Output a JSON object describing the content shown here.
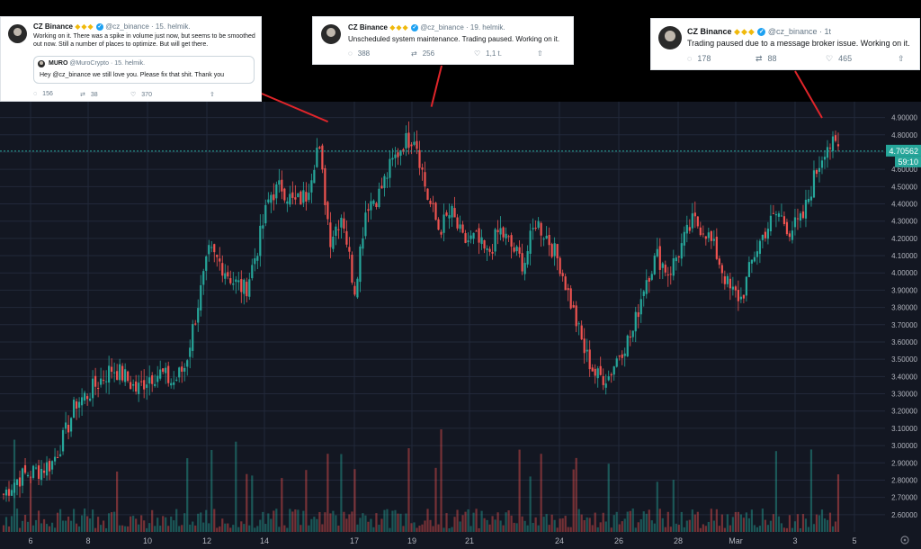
{
  "tweets": [
    {
      "name": "CZ Binance",
      "badges": "◆◆◆",
      "handle": "@cz_binance",
      "time": "15. helmik.",
      "text": "Working on it. There was a spike in volume just now, but seems to be smoothed out now. Still a number of places to optimize. But will get there.",
      "quote": {
        "name": "MURO",
        "handle": "@MuroCrypto",
        "time": "15. helmik.",
        "text": "Hey @cz_binance we still love you. Please fix that shit. Thank you"
      },
      "replies": "156",
      "retweets": "38",
      "likes": "370"
    },
    {
      "name": "CZ Binance",
      "badges": "◆◆◆",
      "handle": "@cz_binance",
      "time": "19. helmik.",
      "text": "Unscheduled system maintenance. Trading paused. Working on it.",
      "replies": "388",
      "retweets": "256",
      "likes": "1,1 t."
    },
    {
      "name": "CZ Binance",
      "badges": "◆◆◆",
      "handle": "@cz_binance",
      "time": "1t",
      "text": "Trading paused due to a message broker issue. Working on it.",
      "replies": "178",
      "retweets": "88",
      "likes": "465"
    }
  ],
  "icons": {
    "reply": "reply-icon",
    "retweet": "retweet-icon",
    "like": "heart-icon",
    "share": "share-icon",
    "verified": "verified-icon"
  },
  "separator": "·",
  "chart": {
    "last_price": "4.70562",
    "countdown": "59:10",
    "y_ticks": [
      "4.90000",
      "4.80000",
      "4.70000",
      "4.60000",
      "4.50000",
      "4.40000",
      "4.30000",
      "4.20000",
      "4.10000",
      "4.00000",
      "3.90000",
      "3.80000",
      "3.70000",
      "3.60000",
      "3.50000",
      "3.40000",
      "3.30000",
      "3.20000",
      "3.10000",
      "3.00000",
      "2.90000",
      "2.80000",
      "2.70000",
      "2.60000"
    ],
    "x_ticks": [
      "6",
      "8",
      "10",
      "12",
      "14",
      "17",
      "19",
      "21",
      "24",
      "26",
      "28",
      "Mar",
      "3",
      "5"
    ],
    "colors": {
      "bg": "#131722",
      "up": "#26a69a",
      "down": "#ef5350",
      "grid": "#22283a",
      "text": "#b2b5be",
      "price": "#26a69a"
    }
  },
  "chart_data": {
    "type": "candlestick",
    "ylim": [
      2.5,
      4.95
    ],
    "price_ticks": [
      4.9,
      4.8,
      4.7,
      4.6,
      4.5,
      4.4,
      4.3,
      4.2,
      4.1,
      4.0,
      3.9,
      3.8,
      3.7,
      3.6,
      3.5,
      3.4,
      3.3,
      3.2,
      3.1,
      3.0,
      2.9,
      2.8,
      2.7,
      2.6
    ],
    "last_price": 4.70562,
    "close_path": [
      2.72,
      2.8,
      2.84,
      2.86,
      2.9,
      3.05,
      3.25,
      3.3,
      3.38,
      3.45,
      3.4,
      3.32,
      3.4,
      3.42,
      3.36,
      3.46,
      3.8,
      4.12,
      4.05,
      3.95,
      3.9,
      4.15,
      4.45,
      4.5,
      4.4,
      4.45,
      4.75,
      4.2,
      4.35,
      3.9,
      4.4,
      4.45,
      4.62,
      4.75,
      4.8,
      4.45,
      4.25,
      4.35,
      4.18,
      4.2,
      4.1,
      4.25,
      4.15,
      4.05,
      4.3,
      4.2,
      4.05,
      3.8,
      3.55,
      3.4,
      3.4,
      3.55,
      3.65,
      3.95,
      4.1,
      4.0,
      4.15,
      4.3,
      4.25,
      4.1,
      3.9,
      3.85,
      4.1,
      4.25,
      4.35,
      4.25,
      4.3,
      4.55,
      4.75,
      4.72
    ]
  }
}
